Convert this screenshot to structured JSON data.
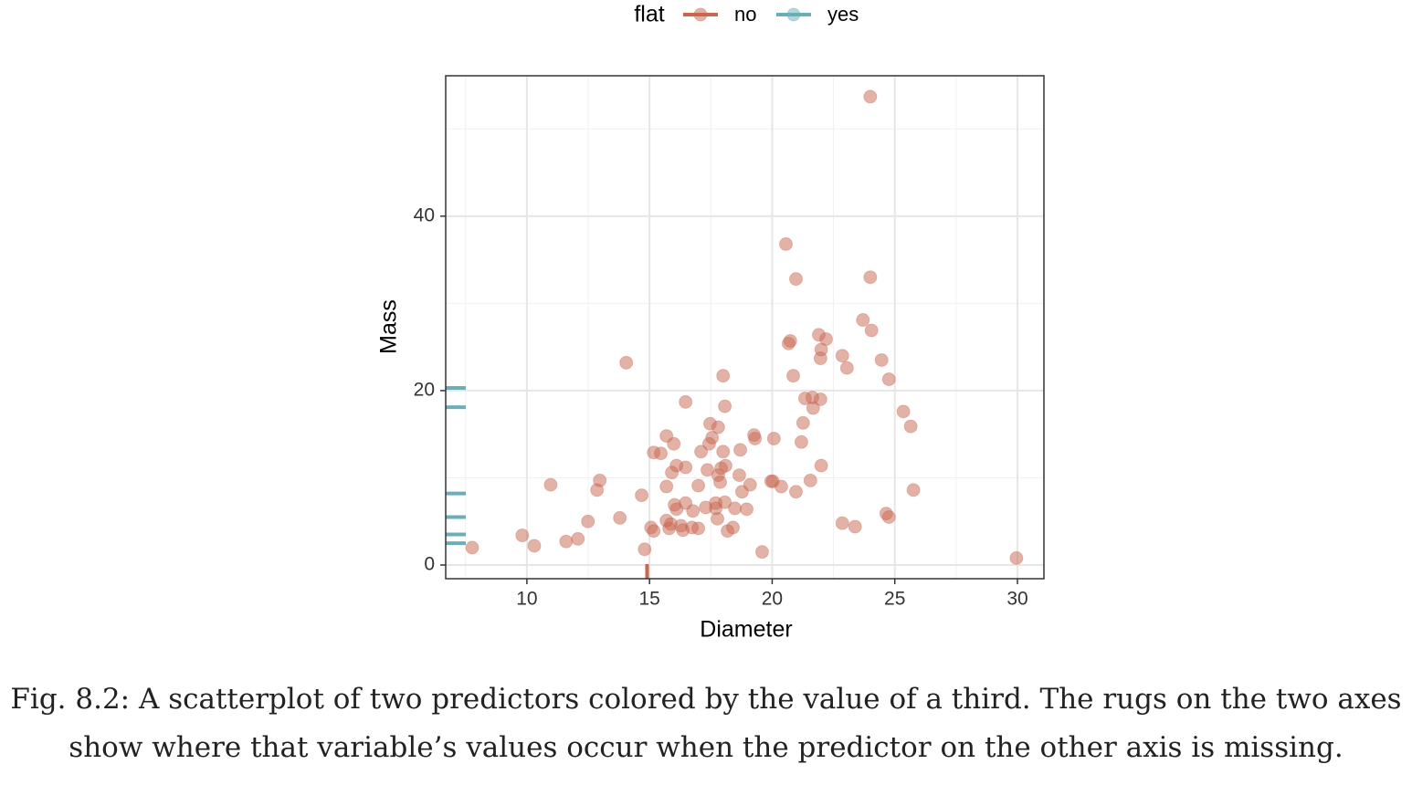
{
  "chart_data": {
    "type": "scatter",
    "xlabel": "Diameter",
    "ylabel": "Mass",
    "legend_title": "flat",
    "legend_position": "top",
    "grid": true,
    "xlim": [
      6.69,
      31.08
    ],
    "ylim": [
      -1.57,
      56.1
    ],
    "xticks": [
      10,
      15,
      20,
      25,
      30
    ],
    "yticks": [
      0,
      20,
      40
    ],
    "x_minor_grid": [
      7.5,
      12.5,
      17.5,
      22.5,
      27.5
    ],
    "y_minor_grid": [
      10,
      30,
      50
    ],
    "series": [
      {
        "name": "no",
        "color": "#c8664f",
        "x": [
          24.0,
          20.56,
          20.97,
          24.0,
          23.7,
          24.05,
          21.9,
          22.2,
          20.74,
          20.67,
          22.0,
          21.97,
          22.86,
          23.05,
          24.46,
          24.76,
          20.86,
          14.05,
          18.0,
          16.47,
          18.07,
          21.34,
          21.64,
          21.97,
          21.67,
          25.35,
          25.65,
          21.26,
          17.47,
          17.8,
          15.69,
          17.55,
          17.43,
          19.26,
          19.3,
          20.07,
          21.19,
          15.99,
          15.17,
          15.46,
          17.1,
          18.0,
          18.7,
          16.1,
          16.47,
          15.91,
          17.36,
          18.1,
          17.92,
          18.66,
          17.8,
          17.88,
          22.0,
          21.56,
          19.96,
          20.03,
          20.37,
          20.97,
          19.1,
          18.77,
          25.76,
          10.97,
          12.97,
          12.86,
          14.68,
          15.69,
          16.99,
          16.1,
          16.02,
          16.47,
          17.29,
          17.7,
          17.7,
          18.07,
          18.48,
          18.96,
          16.77,
          15.69,
          15.87,
          17.77,
          16.28,
          16.73,
          16.99,
          15.8,
          16.36,
          15.06,
          15.17,
          18.18,
          18.4,
          13.79,
          12.49,
          22.86,
          23.38,
          24.65,
          24.76,
          9.81,
          10.3,
          11.6,
          12.08,
          7.77,
          14.8,
          19.59,
          29.96
        ],
        "y": [
          53.7,
          36.8,
          32.8,
          33.0,
          28.1,
          26.9,
          26.4,
          25.9,
          25.7,
          25.4,
          24.7,
          23.7,
          24.0,
          22.6,
          23.5,
          21.3,
          21.7,
          23.2,
          21.7,
          18.7,
          18.2,
          19.1,
          19.2,
          19.0,
          18.0,
          17.6,
          15.9,
          16.3,
          16.2,
          15.8,
          14.8,
          14.6,
          13.9,
          14.9,
          14.5,
          14.5,
          14.1,
          13.9,
          12.9,
          12.8,
          13.0,
          13.0,
          13.2,
          11.4,
          11.2,
          10.6,
          10.9,
          11.4,
          11.1,
          10.3,
          10.3,
          9.5,
          11.4,
          9.7,
          9.6,
          9.6,
          9.0,
          8.4,
          9.2,
          8.4,
          8.6,
          9.2,
          9.7,
          8.6,
          8.0,
          9.0,
          9.1,
          6.4,
          6.9,
          7.1,
          6.6,
          7.1,
          6.5,
          7.2,
          6.5,
          6.4,
          6.2,
          5.1,
          4.7,
          5.3,
          4.5,
          4.3,
          4.2,
          4.2,
          4.0,
          4.3,
          3.9,
          3.9,
          4.3,
          5.4,
          5.0,
          4.8,
          4.4,
          5.9,
          5.5,
          3.4,
          2.2,
          2.7,
          3.0,
          2.0,
          1.8,
          1.5,
          0.8
        ],
        "rug_x": [
          14.9
        ]
      },
      {
        "name": "yes",
        "color": "#6aafb8",
        "x": [],
        "y": [],
        "rug_y": [
          20.3,
          18.1,
          8.2,
          5.5,
          3.5,
          2.5
        ]
      }
    ]
  },
  "caption": "Fig. 8.2: A scatterplot of two predictors colored by the value of a third. The rugs on the two axes show where that variable’s values occur when the predictor on the other axis is missing."
}
